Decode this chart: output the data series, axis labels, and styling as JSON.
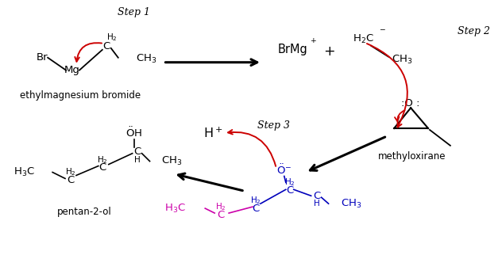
{
  "background": "#ffffff",
  "step1_label": "Step 1",
  "step2_label": "Step 2",
  "step3_label": "Step 3",
  "ethylmag_label": "ethylmagnesium bromide",
  "methylox_label": "methyloxirane",
  "product_label": "pentan-2-ol",
  "black": "#000000",
  "red": "#cc0000",
  "blue": "#0000bb",
  "magenta": "#cc00aa"
}
